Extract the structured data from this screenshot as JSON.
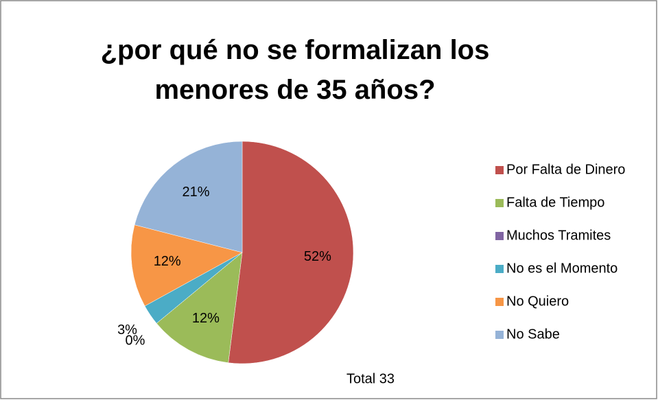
{
  "chart_data": {
    "type": "pie",
    "title": "¿por qué no se formalizan los menores de 35 años?",
    "categories": [
      "Por Falta de Dinero",
      "Falta de Tiempo",
      "Muchos Tramites",
      "No es el Momento",
      "No Quiero",
      "No Sabe"
    ],
    "values": [
      52,
      12,
      0,
      3,
      12,
      21
    ],
    "value_labels": [
      "52%",
      "12%",
      "0%",
      "3%",
      "12%",
      "21%"
    ],
    "colors": [
      "#c0504d",
      "#9bbb59",
      "#8064a2",
      "#4bacc6",
      "#f79646",
      "#95b3d7"
    ],
    "legend": "right",
    "annotation": "Total 33"
  }
}
